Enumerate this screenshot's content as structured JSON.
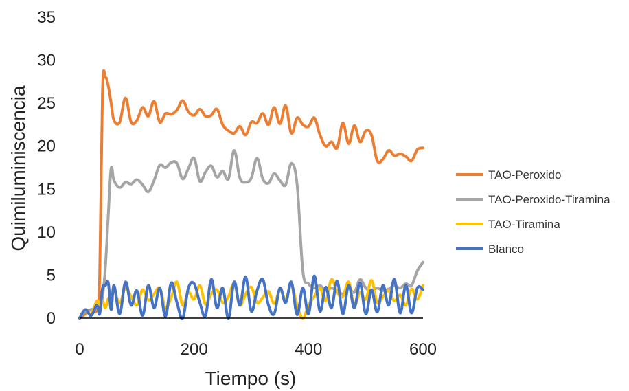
{
  "chart_data": {
    "type": "line",
    "title": "",
    "xlabel": "Tiempo (s)",
    "ylabel": "Quimiluminiscencia",
    "xlim": [
      0,
      600
    ],
    "ylim": [
      0,
      35
    ],
    "xticks": [
      0,
      200,
      400,
      600
    ],
    "yticks": [
      0,
      5,
      10,
      15,
      20,
      25,
      30,
      35
    ],
    "grid": false,
    "legend_position": "right",
    "x": [
      0,
      10,
      20,
      30,
      35,
      40,
      45,
      50,
      55,
      60,
      70,
      80,
      90,
      100,
      110,
      120,
      130,
      140,
      150,
      160,
      170,
      180,
      190,
      200,
      210,
      220,
      230,
      240,
      250,
      260,
      270,
      280,
      290,
      300,
      310,
      320,
      330,
      340,
      350,
      360,
      370,
      380,
      390,
      400,
      410,
      420,
      430,
      440,
      450,
      460,
      470,
      480,
      490,
      500,
      510,
      520,
      530,
      540,
      550,
      560,
      570,
      580,
      590,
      600
    ],
    "series": [
      {
        "name": "TAO-Peroxido",
        "color": "#ED7D31",
        "values": [
          0,
          0.5,
          1,
          1,
          5,
          26.5,
          28,
          27,
          25,
          23,
          22.8,
          25.6,
          22.8,
          23,
          24.5,
          23.5,
          25.2,
          22.8,
          23.8,
          23.7,
          24.2,
          25.3,
          24,
          23.6,
          24.3,
          23.5,
          23.6,
          24.3,
          22.5,
          21.8,
          21.5,
          22.3,
          21.3,
          22.8,
          22.7,
          23.8,
          22.5,
          24.5,
          22.6,
          24.7,
          21.5,
          23.3,
          22.5,
          22.3,
          23.3,
          21.3,
          20,
          20.5,
          19.8,
          22.7,
          20.3,
          22.4,
          20.5,
          21.8,
          21.3,
          18.3,
          18.5,
          19.5,
          18.9,
          19.1,
          18.8,
          18.3,
          19.6,
          19.8
        ]
      },
      {
        "name": "TAO-Peroxido-Tiramina",
        "color": "#A5A5A5",
        "values": [
          0,
          0.8,
          1,
          1.2,
          1.5,
          2.5,
          6,
          12,
          17.4,
          16,
          15.2,
          15.8,
          15.6,
          16.1,
          15.5,
          14.7,
          16,
          17.8,
          17.5,
          18.1,
          18,
          16.2,
          17.4,
          18.6,
          15.9,
          17,
          17.7,
          16.4,
          17.1,
          16.2,
          19.5,
          16.3,
          15.8,
          16.3,
          18.6,
          16.2,
          15.7,
          16.8,
          16,
          15.5,
          18,
          15.5,
          5.5,
          4,
          3.5,
          3.8,
          3.2,
          3.5,
          3.2,
          2.8,
          3.5,
          3,
          4.5,
          3.5,
          3.2,
          3.5,
          3.2,
          3.4,
          3.8,
          3.5,
          4,
          3.8,
          5.5,
          6.5
        ]
      },
      {
        "name": "TAO-Tiramina",
        "color": "#FFC000",
        "values": [
          0,
          1,
          0.5,
          2,
          1.5,
          2,
          1.2,
          2.3,
          2,
          3.2,
          1.8,
          3.5,
          2.5,
          1.5,
          3.3,
          2.1,
          2.8,
          3.5,
          1.2,
          2.4,
          4.2,
          1.5,
          3,
          2.2,
          3.8,
          1.6,
          2.8,
          3.3,
          1.8,
          2.5,
          4,
          1.5,
          2.8,
          3.6,
          1.8,
          2.4,
          3.1,
          1.7,
          3.3,
          2.2,
          3.8,
          1.5,
          0,
          1.5,
          2.5,
          3.5,
          2,
          4.5,
          3,
          2.5,
          4.2,
          1.5,
          3,
          2.2,
          4.4,
          1.8,
          2.5,
          3.2,
          2,
          2.7,
          1.5,
          3.4,
          2.2,
          3.8
        ]
      },
      {
        "name": "Blanco",
        "color": "#4472C4",
        "values": [
          0,
          1,
          0.3,
          1.5,
          0.5,
          3.5,
          3.8,
          4.1,
          1,
          3.8,
          0.5,
          4.2,
          1.5,
          3.2,
          0.3,
          3.8,
          1.2,
          3.5,
          0.2,
          4.1,
          1.8,
          0,
          3.5,
          4,
          1.8,
          0.3,
          4.5,
          1.2,
          3.5,
          0,
          4.2,
          1.5,
          4.8,
          0.8,
          3.2,
          4.5,
          1.5,
          0.5,
          3.5,
          1.8,
          4.2,
          0.4,
          3.5,
          0.5,
          4.9,
          0.8,
          3.6,
          1.2,
          4.3,
          0.5,
          3.8,
          1.2,
          4.1,
          0.5,
          3.3,
          0.7,
          3.8,
          1.5,
          4.5,
          0.6,
          3.8,
          0.6,
          3.5,
          3.3
        ]
      }
    ]
  }
}
